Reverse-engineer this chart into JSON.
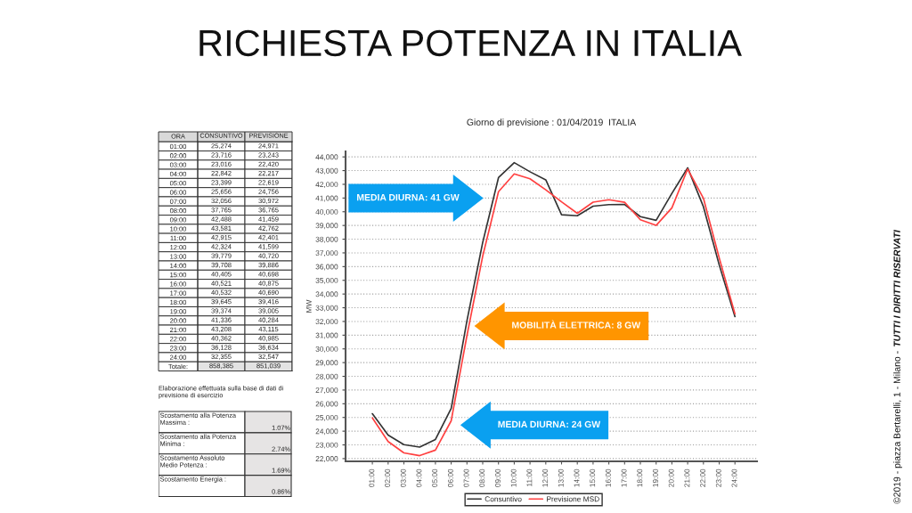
{
  "chart_data": [
    {
      "type": "line",
      "title": "RICHIESTA POTENZA IN ITALIA",
      "subtitle": "Giorno di previsione : 01/04/2019  ITALIA",
      "ylabel": "MW",
      "categories": [
        "01:00",
        "02:00",
        "03:00",
        "04:00",
        "05:00",
        "06:00",
        "07:00",
        "08:00",
        "09:00",
        "10:00",
        "11:00",
        "12:00",
        "13:00",
        "14:00",
        "15:00",
        "16:00",
        "17:00",
        "18:00",
        "19:00",
        "20:00",
        "21:00",
        "22:00",
        "23:00",
        "24:00"
      ],
      "series": [
        {
          "name": "Consuntivo",
          "color": "#333333",
          "values": [
            25274,
            23716,
            23016,
            22842,
            23399,
            25656,
            32056,
            37765,
            42488,
            43581,
            42915,
            42324,
            39779,
            39708,
            40405,
            40521,
            40532,
            39645,
            39374,
            41336,
            43208,
            40362,
            36128,
            32355
          ]
        },
        {
          "name": "Previsione MSD",
          "color": "#ff4040",
          "values": [
            24971,
            23243,
            22420,
            22217,
            22619,
            24756,
            30972,
            36765,
            41459,
            42762,
            42401,
            41599,
            40720,
            39886,
            40698,
            40875,
            40690,
            39416,
            39005,
            40284,
            43115,
            40985,
            36634,
            32547
          ]
        }
      ],
      "ylim": [
        21800,
        44400
      ],
      "yticks": [
        {
          "value": 22000,
          "label": "22,000"
        },
        {
          "value": 23000,
          "label": "23,000"
        },
        {
          "value": 24000,
          "label": "24,000"
        },
        {
          "value": 25000,
          "label": "25,000"
        },
        {
          "value": 26000,
          "label": "26,000"
        },
        {
          "value": 27000,
          "label": "27,000"
        },
        {
          "value": 28000,
          "label": "28,000"
        },
        {
          "value": 29000,
          "label": "29,000"
        },
        {
          "value": 30000,
          "label": "30,000"
        },
        {
          "value": 31000,
          "label": "31,000"
        },
        {
          "value": 32000,
          "label": "32,000"
        },
        {
          "value": 33000,
          "label": "33,000"
        },
        {
          "value": 34000,
          "label": "34,000"
        },
        {
          "value": 35000,
          "label": "35,000"
        },
        {
          "value": 36000,
          "label": "36,000"
        },
        {
          "value": 37000,
          "label": "37,000"
        },
        {
          "value": 38000,
          "label": "38,000"
        },
        {
          "value": 39000,
          "label": "39,000"
        },
        {
          "value": 40000,
          "label": "40,000"
        },
        {
          "value": 41000,
          "label": "41,000"
        },
        {
          "value": 42000,
          "label": "42,000"
        },
        {
          "value": 43000,
          "label": "43,000"
        },
        {
          "value": 44000,
          "label": "44,000"
        }
      ],
      "grid": "y",
      "legend": "bottom",
      "annotations": [
        "MEDIA DIURNA: 41 GW",
        "MOBILITÀ ELETTRICA: 8 GW",
        "MEDIA DIURNA: 24 GW",
        "©2019 - piazza Bertarelli, 1 - Milano -",
        "TUTTI I DIRITTI RISERVATI"
      ]
    },
    {
      "type": "heatmap",
      "ylabel": "ORA",
      "categories": [
        "CONSUNTIVO",
        "PREVISIONE"
      ],
      "y_categories": [
        "01:00",
        "02:00",
        "03:00",
        "04:00",
        "05:00",
        "06:00",
        "07:00",
        "08:00",
        "09:00",
        "10:00",
        "11:00",
        "12:00",
        "13:00",
        "14:00",
        "15:00",
        "16:00",
        "17:00",
        "18:00",
        "19:00",
        "20:00",
        "21:00",
        "22:00",
        "23:00",
        "24:00",
        "Totale:"
      ],
      "cells": [
        [
          25274,
          24971
        ],
        [
          23716,
          23243
        ],
        [
          23016,
          22420
        ],
        [
          22842,
          22217
        ],
        [
          23399,
          22619
        ],
        [
          25656,
          24756
        ],
        [
          32056,
          30972
        ],
        [
          37765,
          36765
        ],
        [
          42488,
          41459
        ],
        [
          43581,
          42762
        ],
        [
          42915,
          42401
        ],
        [
          42324,
          41599
        ],
        [
          39779,
          40720
        ],
        [
          39708,
          39886
        ],
        [
          40405,
          40698
        ],
        [
          40521,
          40875
        ],
        [
          40532,
          40690
        ],
        [
          39645,
          39416
        ],
        [
          39374,
          39005
        ],
        [
          41336,
          40284
        ],
        [
          43208,
          43115
        ],
        [
          40362,
          40985
        ],
        [
          36128,
          36634
        ],
        [
          32355,
          32547
        ],
        [
          858385,
          851039
        ]
      ],
      "cell_labels": [
        [
          "25,274",
          "24,971"
        ],
        [
          "23,716",
          "23,243"
        ],
        [
          "23,016",
          "22,420"
        ],
        [
          "22,842",
          "22,217"
        ],
        [
          "23,399",
          "22,619"
        ],
        [
          "25,656",
          "24,756"
        ],
        [
          "32,056",
          "30,972"
        ],
        [
          "37,765",
          "36,765"
        ],
        [
          "42,488",
          "41,459"
        ],
        [
          "43,581",
          "42,762"
        ],
        [
          "42,915",
          "42,401"
        ],
        [
          "42,324",
          "41,599"
        ],
        [
          "39,779",
          "40,720"
        ],
        [
          "39,708",
          "39,886"
        ],
        [
          "40,405",
          "40,698"
        ],
        [
          "40,521",
          "40,875"
        ],
        [
          "40,532",
          "40,690"
        ],
        [
          "39,645",
          "39,416"
        ],
        [
          "39,374",
          "39,005"
        ],
        [
          "41,336",
          "40,284"
        ],
        [
          "43,208",
          "43,115"
        ],
        [
          "40,362",
          "40,985"
        ],
        [
          "36,128",
          "36,634"
        ],
        [
          "32,355",
          "32,547"
        ],
        [
          "858,385",
          "851,039"
        ]
      ]
    },
    {
      "type": "other",
      "title": "Elaborazione effettuata sulla base di dati di previsione di esercizio",
      "annotations": [
        "Scostamento alla Potenza Massima :",
        "1.07%",
        "Scostamento alla Potenza Minima :",
        "2.74%",
        "Scostamento Assoluto Medio Potenza :",
        "1.69%",
        "Scostamento Energia :",
        "0.86%"
      ]
    }
  ]
}
